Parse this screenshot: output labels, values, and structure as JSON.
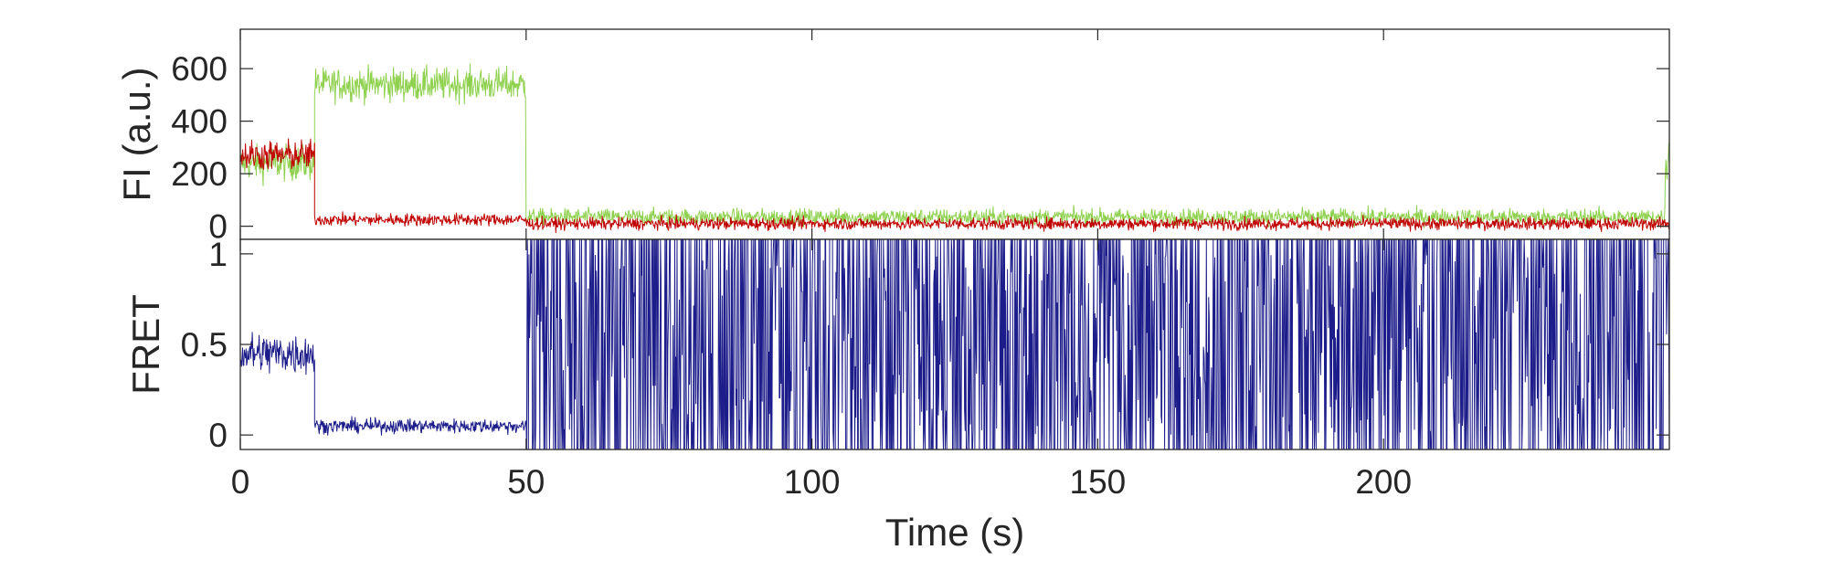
{
  "chart_data": [
    {
      "type": "line",
      "ylabel": "FI (a.u.)",
      "xlim": [
        0,
        250
      ],
      "ylim": [
        -50,
        750
      ],
      "yticks": [
        0,
        200,
        400,
        600
      ],
      "grid": false,
      "series": [
        {
          "color": "#8fd14f",
          "segments": [
            {
              "x_start": 0,
              "x_end": 13,
              "mean": 240,
              "noise": 85
            },
            {
              "x_start": 13,
              "x_end": 50,
              "mean": 540,
              "noise": 80
            },
            {
              "x_start": 50,
              "x_end": 250,
              "mean": 35,
              "noise": 40
            }
          ],
          "x_end_last_value": 300
        },
        {
          "color": "#c00000",
          "segments": [
            {
              "x_start": 0,
              "x_end": 13,
              "mean": 270,
              "noise": 75
            },
            {
              "x_start": 13,
              "x_end": 50,
              "mean": 25,
              "noise": 30
            },
            {
              "x_start": 50,
              "x_end": 250,
              "mean": 10,
              "noise": 30
            }
          ]
        }
      ]
    },
    {
      "type": "line",
      "ylabel": "FRET",
      "xlabel": "Time (s)",
      "xlim": [
        0,
        250
      ],
      "ylim": [
        -0.08,
        1.08
      ],
      "yticks": [
        0,
        0.5,
        1
      ],
      "xticks": [
        0,
        50,
        100,
        150,
        200
      ],
      "grid": false,
      "series": [
        {
          "color": "#1c1c8a",
          "segments": [
            {
              "x_start": 0,
              "x_end": 13,
              "mean": 0.45,
              "noise": 0.15
            },
            {
              "x_start": 13,
              "x_end": 50,
              "mean": 0.05,
              "noise": 0.05
            },
            {
              "x_start": 50,
              "x_end": 250,
              "mean": 0.5,
              "noise": 0.6
            }
          ]
        }
      ]
    }
  ]
}
